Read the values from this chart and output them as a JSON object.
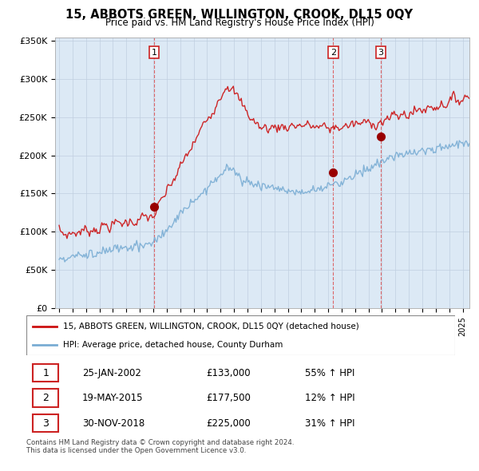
{
  "title": "15, ABBOTS GREEN, WILLINGTON, CROOK, DL15 0QY",
  "subtitle": "Price paid vs. HM Land Registry's House Price Index (HPI)",
  "ylim": [
    0,
    350000
  ],
  "yticks": [
    0,
    50000,
    100000,
    150000,
    200000,
    250000,
    300000,
    350000
  ],
  "ytick_labels": [
    "£0",
    "£50K",
    "£100K",
    "£150K",
    "£200K",
    "£250K",
    "£300K",
    "£350K"
  ],
  "hpi_color": "#7aadd4",
  "price_color": "#cc1111",
  "marker_color": "#990000",
  "vline_color": "#dd4444",
  "bg_color": "#dce9f5",
  "purchases": [
    {
      "date_num": 2002.07,
      "price": 133000,
      "label": "1"
    },
    {
      "date_num": 2015.38,
      "price": 177500,
      "label": "2"
    },
    {
      "date_num": 2018.92,
      "price": 225000,
      "label": "3"
    }
  ],
  "table_rows": [
    [
      "1",
      "25-JAN-2002",
      "£133,000",
      "55% ↑ HPI"
    ],
    [
      "2",
      "19-MAY-2015",
      "£177,500",
      "12% ↑ HPI"
    ],
    [
      "3",
      "30-NOV-2018",
      "£225,000",
      "31% ↑ HPI"
    ]
  ],
  "legend_entries": [
    "15, ABBOTS GREEN, WILLINGTON, CROOK, DL15 0QY (detached house)",
    "HPI: Average price, detached house, County Durham"
  ],
  "footer": "Contains HM Land Registry data © Crown copyright and database right 2024.\nThis data is licensed under the Open Government Licence v3.0.",
  "background_color": "#ffffff"
}
